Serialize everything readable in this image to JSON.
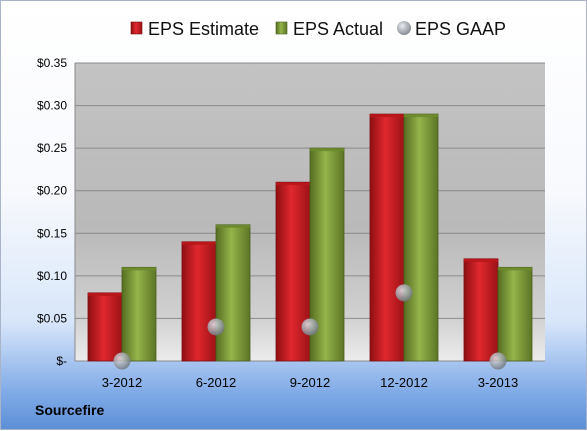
{
  "chart_data": {
    "type": "bar",
    "title": "",
    "xlabel": "",
    "ylabel": "",
    "categories": [
      "3-2012",
      "6-2012",
      "9-2012",
      "12-2012",
      "3-2013"
    ],
    "series": [
      {
        "name": "EPS Estimate",
        "type": "bar",
        "color": "#cc1f24",
        "values": [
          0.08,
          0.14,
          0.21,
          0.29,
          0.12
        ]
      },
      {
        "name": "EPS Actual",
        "type": "bar",
        "color": "#7e9b3a",
        "values": [
          0.11,
          0.16,
          0.25,
          0.29,
          0.11
        ]
      },
      {
        "name": "EPS GAAP",
        "type": "marker",
        "color": "#9aa0a8",
        "values": [
          0.0,
          0.04,
          0.04,
          0.08,
          0.0
        ]
      }
    ],
    "ylim": [
      0,
      0.35
    ],
    "y_ticks": [
      0,
      0.05,
      0.1,
      0.15,
      0.2,
      0.25,
      0.3,
      0.35
    ],
    "y_tick_labels": [
      "$-",
      "$0.05",
      "$0.10",
      "$0.15",
      "$0.20",
      "$0.25",
      "$0.30",
      "$0.35"
    ],
    "grid": true,
    "legend_position": "top"
  },
  "source": "Sourcefire"
}
